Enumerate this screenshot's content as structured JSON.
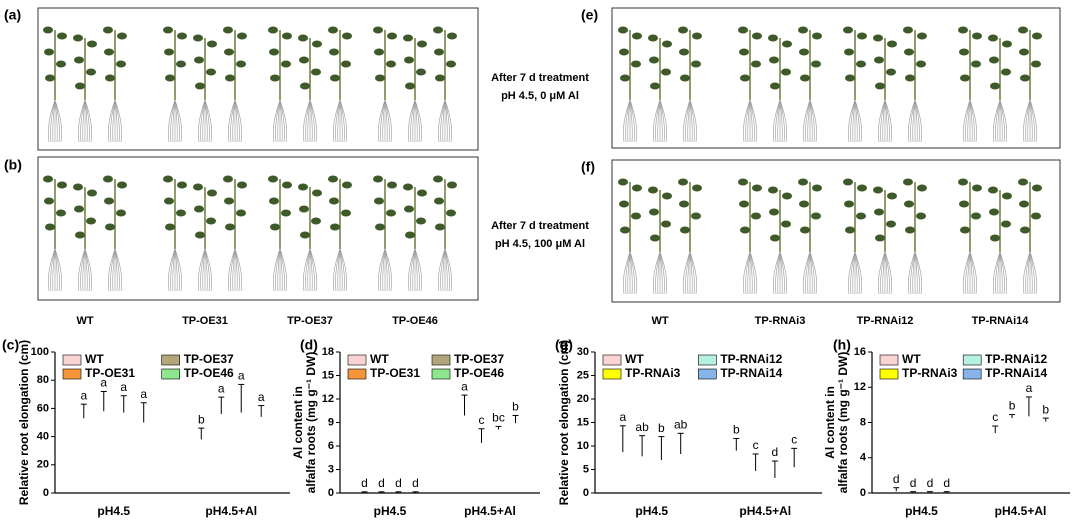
{
  "photo_left": {
    "labels": [
      "(a)",
      "(b)"
    ],
    "treatments": [
      [
        "After 7 d treatment",
        "pH 4.5, 0 μM Al"
      ],
      [
        "After 7 d treatment",
        "pH 4.5, 100 μM Al"
      ]
    ],
    "genotypes": [
      "WT",
      "TP-OE31",
      "TP-OE37",
      "TP-OE46"
    ]
  },
  "photo_right": {
    "labels": [
      "(e)",
      "(f)"
    ],
    "genotypes": [
      "WT",
      "TP-RNAi3",
      "TP-RNAi12",
      "TP-RNAi14"
    ]
  },
  "chart_data": [
    {
      "type": "bar",
      "panel_label": "(c)",
      "ylabel": [
        "Relative root elongation (cm)"
      ],
      "categories": [
        "pH4.5",
        "pH4.5+Al"
      ],
      "ylim": [
        0,
        100
      ],
      "yticks": [
        0,
        20,
        40,
        60,
        80,
        100
      ],
      "series": [
        {
          "name": "WT",
          "color": "#fad4d2",
          "values": [
            58,
            42
          ],
          "errors": [
            5,
            4
          ],
          "letters": [
            "a",
            "b"
          ]
        },
        {
          "name": "TP-OE31",
          "color": "#f5963a",
          "values": [
            65,
            62
          ],
          "errors": [
            7,
            6
          ],
          "letters": [
            "a",
            "a"
          ]
        },
        {
          "name": "TP-OE37",
          "color": "#b3a67a",
          "values": [
            63,
            67
          ],
          "errors": [
            6,
            10
          ],
          "letters": [
            "a",
            "a"
          ]
        },
        {
          "name": "TP-OE46",
          "color": "#8ee68e",
          "values": [
            57,
            58
          ],
          "errors": [
            7,
            4
          ],
          "letters": [
            "a",
            "a"
          ]
        }
      ]
    },
    {
      "type": "bar",
      "panel_label": "(d)",
      "ylabel": [
        "Al content in",
        "alfalfa roots (mg g⁻¹ DW)"
      ],
      "categories": [
        "pH4.5",
        "pH4.5+Al"
      ],
      "ylim": [
        0,
        18
      ],
      "yticks": [
        0,
        3,
        6,
        9,
        12,
        15,
        18
      ],
      "series": [
        {
          "name": "WT",
          "color": "#fad4d2",
          "values": [
            0.1,
            11.2
          ],
          "errors": [
            0.05,
            1.3
          ],
          "letters": [
            "d",
            "a"
          ]
        },
        {
          "name": "TP-OE31",
          "color": "#f5963a",
          "values": [
            0.1,
            7.3
          ],
          "errors": [
            0.05,
            0.9
          ],
          "letters": [
            "d",
            "c"
          ]
        },
        {
          "name": "TP-OE37",
          "color": "#b3a67a",
          "values": [
            0.1,
            8.3
          ],
          "errors": [
            0.05,
            0.2
          ],
          "letters": [
            "d",
            "bc"
          ]
        },
        {
          "name": "TP-OE46",
          "color": "#8ee68e",
          "values": [
            0.1,
            9.4
          ],
          "errors": [
            0.05,
            0.5
          ],
          "letters": [
            "d",
            "b"
          ]
        }
      ]
    },
    {
      "type": "bar",
      "panel_label": "(g)",
      "ylabel": [
        "Relative root elongation (cm)"
      ],
      "categories": [
        "pH4.5",
        "pH4.5+Al"
      ],
      "ylim": [
        0,
        30
      ],
      "yticks": [
        0,
        5,
        10,
        15,
        20,
        25,
        30
      ],
      "series": [
        {
          "name": "WT",
          "color": "#fad4d2",
          "values": [
            11.5,
            10.3
          ],
          "errors": [
            2.8,
            1.3
          ],
          "letters": [
            "a",
            "b"
          ]
        },
        {
          "name": "TP-RNAi3",
          "color": "#ffff00",
          "values": [
            10,
            6.5
          ],
          "errors": [
            2.2,
            1.8
          ],
          "letters": [
            "ab",
            "c"
          ]
        },
        {
          "name": "TP-RNAi12",
          "color": "#b5f0e0",
          "values": [
            9.5,
            5
          ],
          "errors": [
            2.5,
            1.8
          ],
          "letters": [
            "b",
            "d"
          ]
        },
        {
          "name": "TP-RNAi14",
          "color": "#86b4e8",
          "values": [
            10.5,
            7.5
          ],
          "errors": [
            2.2,
            2
          ],
          "letters": [
            "ab",
            "c"
          ]
        }
      ]
    },
    {
      "type": "bar",
      "panel_label": "(h)",
      "ylabel": [
        "Al content in",
        "alfalfa roots (mg g⁻¹ DW)"
      ],
      "categories": [
        "pH4.5",
        "pH4.5+Al"
      ],
      "ylim": [
        0,
        16
      ],
      "yticks": [
        0,
        4,
        8,
        12,
        16
      ],
      "series": [
        {
          "name": "WT",
          "color": "#fad4d2",
          "values": [
            0.4,
            7.2
          ],
          "errors": [
            0.2,
            0.4
          ],
          "letters": [
            "d",
            "c"
          ]
        },
        {
          "name": "TP-RNAi3",
          "color": "#ffff00",
          "values": [
            0.1,
            8.7
          ],
          "errors": [
            0.05,
            0.2
          ],
          "letters": [
            "d",
            "b"
          ]
        },
        {
          "name": "TP-RNAi12",
          "color": "#b5f0e0",
          "values": [
            0.1,
            9.8
          ],
          "errors": [
            0.05,
            1.1
          ],
          "letters": [
            "d",
            "a"
          ]
        },
        {
          "name": "TP-RNAi14",
          "color": "#86b4e8",
          "values": [
            0.1,
            8.3
          ],
          "errors": [
            0.05,
            0.2
          ],
          "letters": [
            "d",
            "b"
          ]
        }
      ]
    }
  ]
}
